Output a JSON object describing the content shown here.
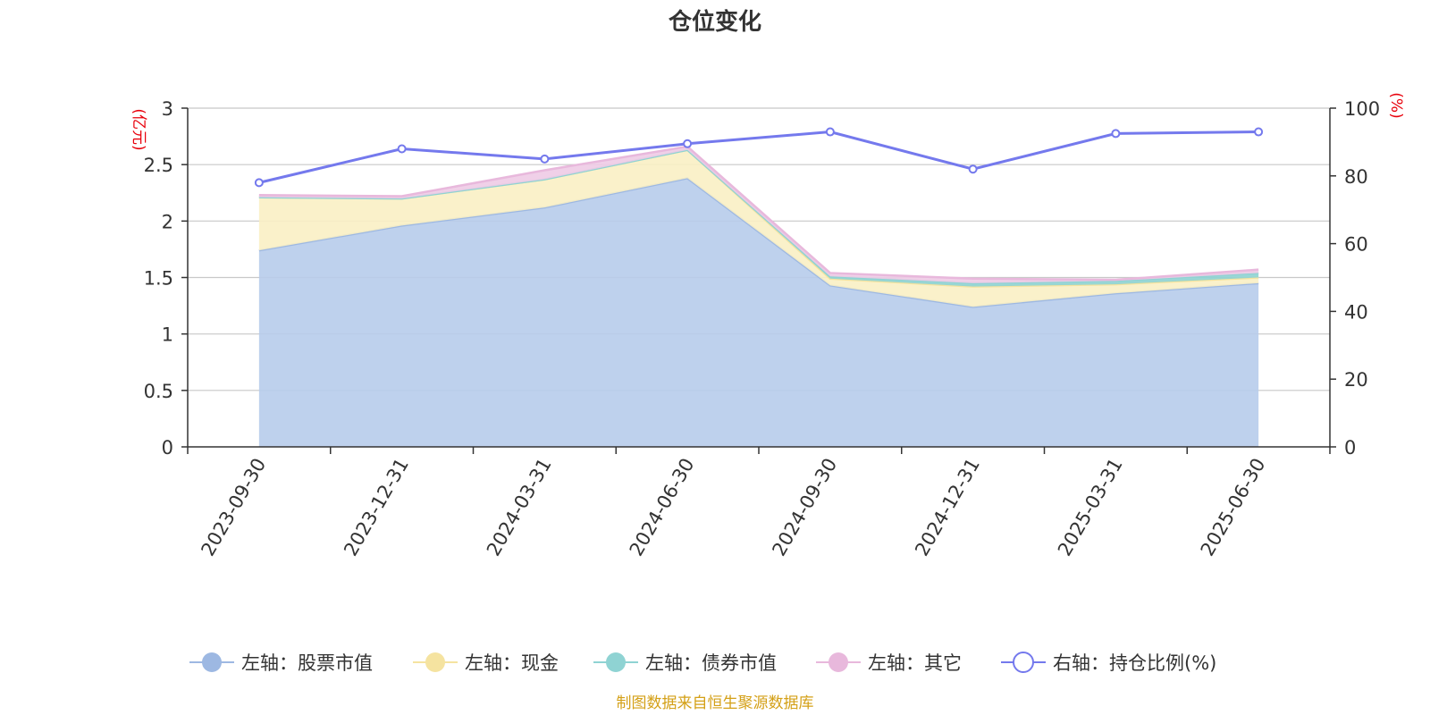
{
  "title": "仓位变化",
  "source_note": "制图数据来自恒生聚源数据库",
  "colors": {
    "stock": "#9db8e2",
    "stock_fill": "#b7cceb",
    "cash": "#f5e3a0",
    "cash_fill": "#faefc4",
    "bond": "#8fd3d3",
    "other": "#e8b8dc",
    "other_fill": "#eecbe6",
    "ratio": "#7479ed"
  },
  "chart_data": {
    "type": "area",
    "title": "仓位变化",
    "categories": [
      "2023-09-30",
      "2023-12-31",
      "2024-03-31",
      "2024-06-30",
      "2024-09-30",
      "2024-12-31",
      "2025-03-31",
      "2025-06-30"
    ],
    "left_axis": {
      "unit": "(亿元)",
      "ylim": [
        0,
        3
      ],
      "ticks": [
        "0",
        "0.5",
        "1",
        "1.5",
        "2",
        "2.5",
        "3"
      ]
    },
    "right_axis": {
      "unit": "(%)",
      "ylim": [
        0,
        100
      ],
      "ticks": [
        "0",
        "20",
        "40",
        "60",
        "80",
        "100"
      ]
    },
    "grid": true,
    "legend_position": "bottom",
    "stacked_series": [
      {
        "name": "左轴：股票市值",
        "values": [
          1.74,
          1.96,
          2.12,
          2.38,
          1.43,
          1.24,
          1.36,
          1.45
        ]
      },
      {
        "name": "左轴：现金",
        "values": [
          0.47,
          0.24,
          0.25,
          0.25,
          0.06,
          0.18,
          0.08,
          0.05
        ]
      },
      {
        "name": "左轴：债券市值",
        "values": [
          0.0,
          0.0,
          0.0,
          0.0,
          0.02,
          0.03,
          0.03,
          0.04
        ]
      },
      {
        "name": "左轴：其它",
        "values": [
          0.02,
          0.02,
          0.08,
          0.03,
          0.03,
          0.04,
          0.01,
          0.03
        ]
      }
    ],
    "line_series": {
      "name": "右轴：持仓比例(%)",
      "values": [
        78,
        88,
        85,
        89.5,
        93,
        82,
        92.5,
        93
      ]
    }
  }
}
